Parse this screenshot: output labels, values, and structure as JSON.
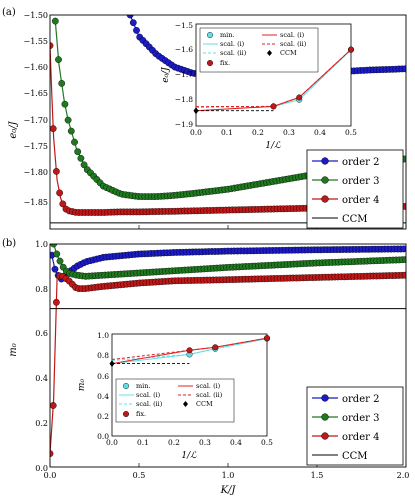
{
  "figure": {
    "panels": [
      {
        "id": "a",
        "panel_label": "(a)",
        "ylabel": "e₀/J",
        "yticks": [
          "−1.50",
          "−1.55",
          "−1.60",
          "−1.65",
          "−1.70",
          "−1.75",
          "−1.80",
          "−1.85"
        ],
        "xticks": [
          "0.0",
          "0.5",
          "1.0",
          "1.5",
          "2.0"
        ],
        "legend": [
          "order 2",
          "order 3",
          "order 4",
          "CCM"
        ],
        "inset": {
          "ylabel": "e₀/J",
          "xlabel": "1/ℒ",
          "yticks": [
            "−1.5",
            "−1.6",
            "−1.7",
            "−1.8",
            "−1.9"
          ],
          "xticks": [
            "0.0",
            "0.1",
            "0.2",
            "0.3",
            "0.4",
            "0.5"
          ],
          "legend": [
            "min.",
            "scal. (i)",
            "scal. (ii)",
            "fix.",
            "scal. (i)",
            "scal. (ii)",
            "CCM"
          ]
        }
      },
      {
        "id": "b",
        "panel_label": "(b)",
        "ylabel": "m₀",
        "xlabel": "K/J",
        "yticks": [
          "1.0",
          "0.8",
          "0.6",
          "0.4",
          "0.2",
          "0.0"
        ],
        "xticks": [
          "0.0",
          "0.5",
          "1.0",
          "1.5",
          "2.0"
        ],
        "legend": [
          "order 2",
          "order 3",
          "order 4",
          "CCM"
        ],
        "inset": {
          "ylabel": "m₀",
          "xlabel": "1/ℒ",
          "yticks": [
            "1.0",
            "0.8",
            "0.6",
            "0.4",
            "0.2",
            "0.0"
          ],
          "xticks": [
            "0.0",
            "0.1",
            "0.2",
            "0.3",
            "0.4",
            "0.5"
          ],
          "legend": [
            "min.",
            "scal. (i)",
            "scal. (ii)",
            "fix.",
            "scal. (i)",
            "scal. (ii)",
            "CCM"
          ]
        }
      }
    ]
  },
  "colors": {
    "order2": "#1b1bc8",
    "order3": "#1f7a1f",
    "order4": "#c01818",
    "ccm": "#000000",
    "cyan": "#5fe0e8",
    "red": "#e02020"
  },
  "chart_data": [
    {
      "type": "line",
      "ylabel": "e₀/J",
      "xlim": [
        0,
        2.0
      ],
      "ylim": [
        -1.85,
        -1.5
      ],
      "series": [
        {
          "name": "order 2",
          "x": [
            0.45,
            0.5,
            0.6,
            0.7,
            0.8,
            0.9,
            1.0,
            1.2,
            1.4,
            1.6,
            1.8,
            2.0
          ],
          "y": [
            -1.5,
            -1.535,
            -1.565,
            -1.585,
            -1.595,
            -1.6,
            -1.601,
            -1.599,
            -1.596,
            -1.593,
            -1.59,
            -1.588
          ]
        },
        {
          "name": "order 3",
          "x": [
            0.03,
            0.05,
            0.08,
            0.1,
            0.15,
            0.2,
            0.3,
            0.4,
            0.5,
            0.6,
            0.7,
            0.8,
            1.0,
            1.2,
            1.4,
            1.6,
            1.8,
            2.0
          ],
          "y": [
            -1.51,
            -1.58,
            -1.64,
            -1.67,
            -1.72,
            -1.75,
            -1.78,
            -1.793,
            -1.797,
            -1.797,
            -1.795,
            -1.792,
            -1.785,
            -1.775,
            -1.765,
            -1.755,
            -1.745,
            -1.735
          ]
        },
        {
          "name": "order 4",
          "x": [
            0.0,
            0.01,
            0.02,
            0.04,
            0.06,
            0.08,
            0.1,
            0.15,
            0.2,
            0.3,
            0.4,
            0.5,
            0.7,
            1.0,
            1.3,
            1.6,
            1.8,
            2.0
          ],
          "y": [
            -1.55,
            -1.63,
            -1.7,
            -1.77,
            -1.8,
            -1.815,
            -1.82,
            -1.823,
            -1.823,
            -1.823,
            -1.822,
            -1.822,
            -1.821,
            -1.819,
            -1.817,
            -1.815,
            -1.814,
            -1.813
          ]
        },
        {
          "name": "CCM",
          "x": [
            0,
            2.0
          ],
          "y": [
            -1.84,
            -1.84
          ]
        }
      ],
      "inset": {
        "xlabel": "1/ℒ",
        "ylabel": "e₀/J",
        "xlim": [
          0,
          0.5
        ],
        "ylim": [
          -1.9,
          -1.5
        ],
        "series": [
          {
            "name": "min.",
            "x": [
              0.25,
              0.333,
              0.5
            ],
            "y": [
              -1.823,
              -1.797,
              -1.601
            ]
          },
          {
            "name": "fix.",
            "x": [
              0.25,
              0.333,
              0.5
            ],
            "y": [
              -1.823,
              -1.788,
              -1.6
            ]
          },
          {
            "name": "CCM",
            "x": [
              0.0
            ],
            "y": [
              -1.84
            ]
          }
        ]
      }
    },
    {
      "type": "line",
      "ylabel": "m₀",
      "xlabel": "K/J",
      "xlim": [
        0,
        2.0
      ],
      "ylim": [
        0,
        1.0
      ],
      "series": [
        {
          "name": "order 2",
          "x": [
            0.01,
            0.03,
            0.06,
            0.1,
            0.15,
            0.2,
            0.3,
            0.5,
            0.7,
            1.0,
            1.5,
            2.0
          ],
          "y": [
            0.95,
            0.88,
            0.84,
            0.87,
            0.9,
            0.92,
            0.94,
            0.955,
            0.962,
            0.968,
            0.974,
            0.978
          ]
        },
        {
          "name": "order 3",
          "x": [
            0.02,
            0.04,
            0.07,
            0.1,
            0.15,
            0.2,
            0.3,
            0.5,
            0.7,
            1.0,
            1.5,
            2.0
          ],
          "y": [
            1.0,
            0.95,
            0.9,
            0.87,
            0.86,
            0.855,
            0.86,
            0.87,
            0.88,
            0.895,
            0.915,
            0.93
          ]
        },
        {
          "name": "order 4",
          "x": [
            0.0,
            0.02,
            0.04,
            0.06,
            0.08,
            0.1,
            0.15,
            0.2,
            0.3,
            0.5,
            0.7,
            1.0,
            1.5,
            2.0
          ],
          "y": [
            0.06,
            0.3,
            0.85,
            0.86,
            0.85,
            0.84,
            0.8,
            0.8,
            0.81,
            0.825,
            0.835,
            0.84,
            0.85,
            0.86
          ]
        },
        {
          "name": "CCM",
          "x": [
            0,
            2.0
          ],
          "y": [
            0.71,
            0.71
          ]
        }
      ],
      "inset": {
        "xlabel": "1/ℒ",
        "ylabel": "m₀",
        "xlim": [
          0,
          0.5
        ],
        "ylim": [
          0,
          1.0
        ],
        "series": [
          {
            "name": "min.",
            "x": [
              0.25,
              0.333,
              0.5
            ],
            "y": [
              0.8,
              0.855,
              0.955
            ]
          },
          {
            "name": "fix.",
            "x": [
              0.25,
              0.333,
              0.5
            ],
            "y": [
              0.84,
              0.87,
              0.96
            ]
          },
          {
            "name": "CCM",
            "x": [
              0.0
            ],
            "y": [
              0.71
            ]
          }
        ]
      }
    }
  ]
}
